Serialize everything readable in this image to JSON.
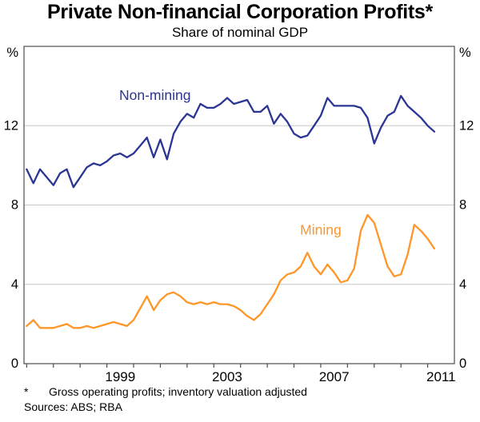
{
  "header": {
    "title": "Private Non-financial Corporation Profits*",
    "subtitle": "Share of nominal GDP"
  },
  "footnote": {
    "marker": "*",
    "text": "Gross operating profits; inventory valuation adjusted",
    "sources": "Sources: ABS; RBA"
  },
  "colors": {
    "non_mining": "#2B3594",
    "mining": "#FF9628",
    "grid": "#C8C8C8",
    "frame": "#4D4D4F",
    "text": "#000000"
  },
  "chart_data": {
    "type": "line",
    "title": "Private Non-financial Corporation Profits*",
    "subtitle": "Share of nominal GDP",
    "ylabel": "%",
    "xlabel": "",
    "grid": true,
    "xlim": [
      1995.9,
      2012.0
    ],
    "ylim": [
      0,
      16
    ],
    "yticks": [
      0,
      4,
      8,
      12
    ],
    "ytick_unit": "%",
    "xticks": [
      1996,
      1997,
      1998,
      1999,
      2000,
      2001,
      2002,
      2003,
      2004,
      2005,
      2006,
      2007,
      2008,
      2009,
      2010,
      2011
    ],
    "xtick_labels": [
      {
        "label": "1999",
        "x": 1999.5
      },
      {
        "label": "2003",
        "x": 2003.5
      },
      {
        "label": "2007",
        "x": 2007.5
      },
      {
        "label": "2011",
        "x": 2011.5
      }
    ],
    "x_start": 1996.0,
    "x_step": 0.25,
    "x_unit": "quarterly",
    "series": [
      {
        "name": "Non-mining",
        "color": "#2B3594",
        "values": [
          9.8,
          9.1,
          9.8,
          9.4,
          9.0,
          9.6,
          9.8,
          8.9,
          9.4,
          9.9,
          10.1,
          10.0,
          10.2,
          10.5,
          10.6,
          10.4,
          10.6,
          11.0,
          11.4,
          10.4,
          11.3,
          10.3,
          11.6,
          12.2,
          12.6,
          12.4,
          13.1,
          12.9,
          12.9,
          13.1,
          13.4,
          13.1,
          13.2,
          13.3,
          12.7,
          12.7,
          13.0,
          12.1,
          12.6,
          12.2,
          11.6,
          11.4,
          11.5,
          12.0,
          12.5,
          13.4,
          13.0,
          13.0,
          13.0,
          13.0,
          12.9,
          12.4,
          11.1,
          11.9,
          12.5,
          12.7,
          13.5,
          13.0,
          12.7,
          12.4,
          12.0,
          11.7
        ]
      },
      {
        "name": "Mining",
        "color": "#FF9628",
        "values": [
          1.9,
          2.2,
          1.8,
          1.8,
          1.8,
          1.9,
          2.0,
          1.8,
          1.8,
          1.9,
          1.8,
          1.9,
          2.0,
          2.1,
          2.0,
          1.9,
          2.2,
          2.8,
          3.4,
          2.7,
          3.2,
          3.5,
          3.6,
          3.4,
          3.1,
          3.0,
          3.1,
          3.0,
          3.1,
          3.0,
          3.0,
          2.9,
          2.7,
          2.4,
          2.2,
          2.5,
          3.0,
          3.5,
          4.2,
          4.5,
          4.6,
          4.9,
          5.6,
          4.9,
          4.5,
          5.0,
          4.6,
          4.1,
          4.2,
          4.8,
          6.7,
          7.5,
          7.1,
          6.0,
          4.9,
          4.4,
          4.5,
          5.5,
          7.0,
          6.7,
          6.3,
          5.8
        ]
      }
    ],
    "annotations": [
      {
        "text": "Non-mining",
        "x": 2000.8,
        "y": 13.55,
        "color": "#2B3594"
      },
      {
        "text": "Mining",
        "x": 2007.0,
        "y": 6.75,
        "color": "#FF9628"
      }
    ],
    "legend_position": "inline-labels"
  }
}
